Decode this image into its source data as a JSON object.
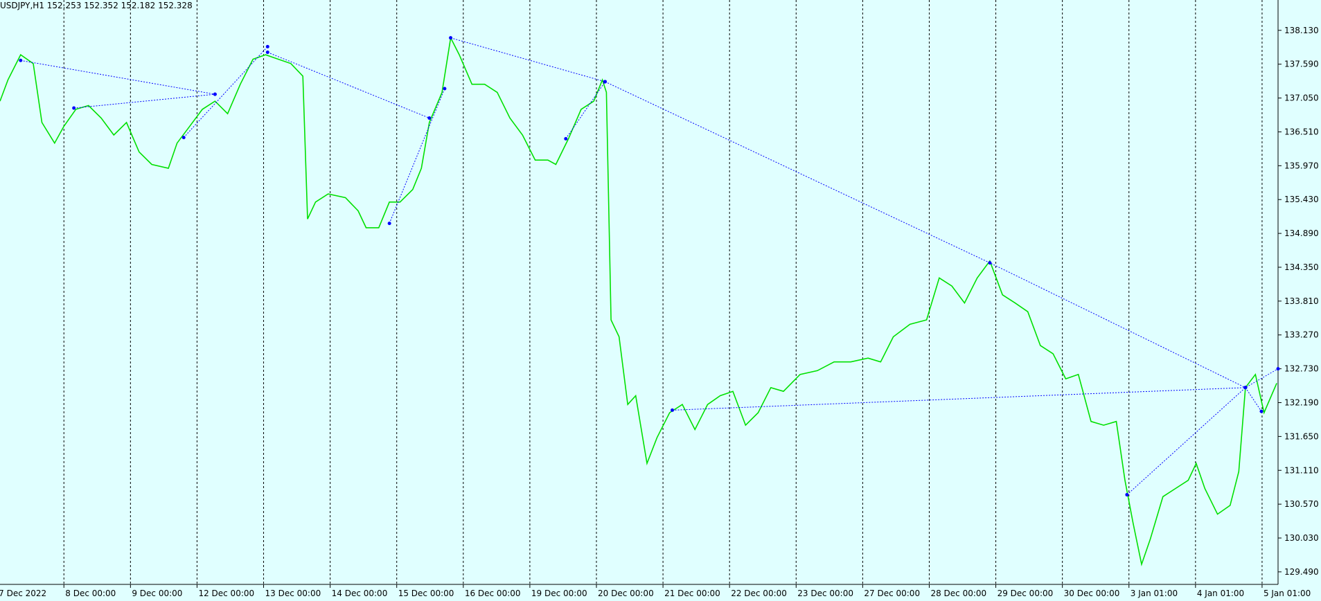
{
  "chart_data": {
    "type": "line",
    "title": "USDJPY,H1  152.253 152.352 152.182 152.328",
    "background": "#e0ffff",
    "color": "#00e000",
    "grid": true,
    "x": [
      -0.96,
      -0.84,
      -0.65,
      -0.46,
      -0.33,
      -0.14,
      0,
      0.18,
      0.37,
      0.56,
      0.75,
      0.94,
      1.13,
      1.32,
      1.57,
      1.7,
      1.89,
      2.08,
      2.27,
      2.46,
      2.65,
      2.84,
      3.03,
      3.22,
      3.41,
      3.59,
      3.66,
      3.78,
      3.97,
      4.23,
      4.42,
      4.54,
      4.73,
      4.89,
      5.05,
      5.24,
      5.37,
      5.49,
      5.68,
      5.81,
      5.94,
      6.13,
      6.32,
      6.51,
      6.7,
      6.89,
      7.08,
      7.27,
      7.39,
      7.58,
      7.77,
      7.96,
      8.09,
      8.15,
      8.22,
      8.34,
      8.47,
      8.59,
      8.76,
      8.91,
      9.1,
      9.29,
      9.48,
      9.67,
      9.86,
      10.05,
      10.24,
      10.43,
      10.62,
      10.81,
      11.06,
      11.32,
      11.57,
      11.82,
      12.08,
      12.27,
      12.46,
      12.71,
      12.96,
      13.15,
      13.34,
      13.53,
      13.72,
      13.91,
      14.1,
      14.29,
      14.48,
      14.67,
      14.86,
      15.05,
      15.24,
      15.43,
      15.62,
      15.81,
      15.94,
      16.06,
      16.19,
      16.32,
      16.51,
      16.7,
      16.89,
      17.01,
      17.14,
      17.33,
      17.52,
      17.65,
      17.75,
      17.9,
      18.03,
      18.22
    ],
    "values": [
      137.0,
      137.34,
      137.74,
      137.6,
      136.66,
      136.33,
      136.6,
      136.87,
      136.93,
      136.73,
      136.46,
      136.66,
      136.19,
      135.99,
      135.93,
      136.33,
      136.6,
      136.87,
      137.0,
      136.8,
      137.27,
      137.67,
      137.74,
      137.67,
      137.6,
      137.4,
      135.12,
      135.39,
      135.52,
      135.46,
      135.25,
      134.98,
      134.98,
      135.39,
      135.39,
      135.59,
      135.93,
      136.66,
      137.14,
      138.01,
      137.74,
      137.27,
      137.27,
      137.14,
      136.73,
      136.46,
      136.06,
      136.06,
      135.99,
      136.4,
      136.87,
      137.0,
      137.34,
      137.14,
      133.51,
      133.24,
      132.16,
      132.3,
      131.22,
      131.63,
      132.03,
      132.16,
      131.76,
      132.16,
      132.3,
      132.37,
      131.83,
      132.03,
      132.43,
      132.37,
      132.64,
      132.7,
      132.84,
      132.84,
      132.9,
      132.84,
      133.24,
      133.44,
      133.51,
      134.18,
      134.05,
      133.78,
      134.18,
      134.45,
      133.91,
      133.78,
      133.64,
      133.1,
      132.97,
      132.57,
      132.64,
      131.89,
      131.83,
      131.89,
      130.95,
      130.28,
      129.61,
      130.01,
      130.69,
      130.82,
      130.95,
      131.22,
      130.82,
      130.41,
      130.55,
      131.09,
      132.43,
      132.64,
      132.03,
      132.5
    ],
    "lines_color": "#0000ff",
    "lines": [
      {
        "x": [
          -0.65,
          2.27
        ],
        "y": [
          137.65,
          137.11
        ]
      },
      {
        "x": [
          0.15,
          2.27
        ],
        "y": [
          136.89,
          137.11
        ]
      },
      {
        "x": [
          1.8,
          3.06
        ],
        "y": [
          136.42,
          137.87
        ]
      },
      {
        "x": [
          3.06,
          5.49
        ],
        "y": [
          137.78,
          136.73
        ]
      },
      {
        "x": [
          4.89,
          5.72
        ],
        "y": [
          135.05,
          137.2
        ]
      },
      {
        "x": [
          5.81,
          8.13
        ],
        "y": [
          138.01,
          137.31
        ]
      },
      {
        "x": [
          7.54,
          8.13
        ],
        "y": [
          136.4,
          137.31
        ]
      },
      {
        "x": [
          8.13,
          13.91,
          17.75
        ],
        "y": [
          137.31,
          134.42,
          132.43
        ]
      },
      {
        "x": [
          9.14,
          17.75
        ],
        "y": [
          132.07,
          132.43
        ]
      },
      {
        "x": [
          15.97,
          17.75,
          18.24
        ],
        "y": [
          130.72,
          132.43,
          132.73
        ]
      },
      {
        "x": [
          17.75,
          17.99
        ],
        "y": [
          132.43,
          132.05
        ]
      }
    ],
    "xlim": [
      -0.96,
      18.24
    ],
    "xticks": [
      {
        "value": -1,
        "label": "7 Dec 2022"
      },
      {
        "value": 0,
        "label": "8 Dec 00:00"
      },
      {
        "value": 1,
        "label": "9 Dec 00:00"
      },
      {
        "value": 2,
        "label": "12 Dec 00:00"
      },
      {
        "value": 3,
        "label": "13 Dec 00:00"
      },
      {
        "value": 4,
        "label": "14 Dec 00:00"
      },
      {
        "value": 5,
        "label": "15 Dec 00:00"
      },
      {
        "value": 6,
        "label": "16 Dec 00:00"
      },
      {
        "value": 7,
        "label": "19 Dec 00:00"
      },
      {
        "value": 8,
        "label": "20 Dec 00:00"
      },
      {
        "value": 9,
        "label": "21 Dec 00:00"
      },
      {
        "value": 10,
        "label": "22 Dec 00:00"
      },
      {
        "value": 11,
        "label": "23 Dec 00:00"
      },
      {
        "value": 12,
        "label": "27 Dec 00:00"
      },
      {
        "value": 13,
        "label": "28 Dec 00:00"
      },
      {
        "value": 14,
        "label": "29 Dec 00:00"
      },
      {
        "value": 15,
        "label": "30 Dec 00:00"
      },
      {
        "value": 16,
        "label": "3 Jan 01:00"
      },
      {
        "value": 17,
        "label": "4 Jan 01:00"
      },
      {
        "value": 18,
        "label": "5 Jan 01:00"
      }
    ],
    "ylim": [
      129.29,
      138.614
    ],
    "yticks": [
      {
        "value": 129.49,
        "label": "129.490"
      },
      {
        "value": 130.03,
        "label": "130.030"
      },
      {
        "value": 130.57,
        "label": "130.570"
      },
      {
        "value": 131.11,
        "label": "131.110"
      },
      {
        "value": 131.65,
        "label": "131.650"
      },
      {
        "value": 132.19,
        "label": "132.190"
      },
      {
        "value": 132.73,
        "label": "132.730"
      },
      {
        "value": 133.27,
        "label": "133.270"
      },
      {
        "value": 133.81,
        "label": "133.810"
      },
      {
        "value": 134.35,
        "label": "134.350"
      },
      {
        "value": 134.89,
        "label": "134.890"
      },
      {
        "value": 135.43,
        "label": "135.430"
      },
      {
        "value": 135.97,
        "label": "135.970"
      },
      {
        "value": 136.51,
        "label": "136.510"
      },
      {
        "value": 137.05,
        "label": "137.050"
      },
      {
        "value": 137.59,
        "label": "137.590"
      },
      {
        "value": 138.13,
        "label": "138.130"
      }
    ]
  }
}
